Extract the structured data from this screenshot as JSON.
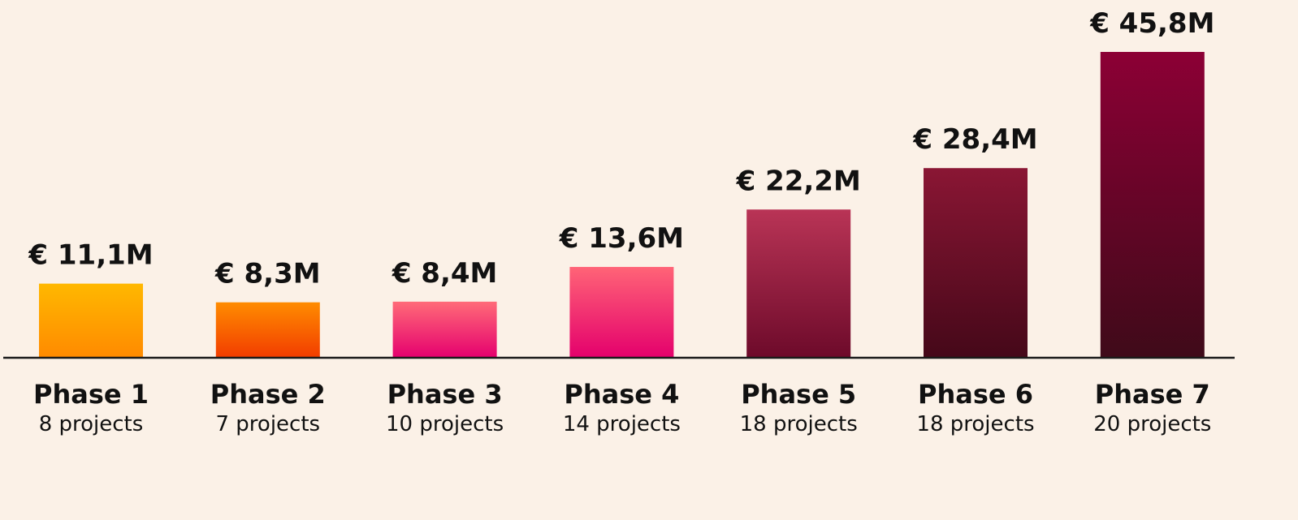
{
  "chart_data": {
    "type": "bar",
    "categories": [
      "Phase 1",
      "Phase 2",
      "Phase 3",
      "Phase 4",
      "Phase 5",
      "Phase 6",
      "Phase 7"
    ],
    "values": [
      11.1,
      8.3,
      8.4,
      13.6,
      22.2,
      28.4,
      45.8
    ],
    "value_labels": [
      "€ 11,1M",
      "€ 8,3M",
      "€ 8,4M",
      "€ 13,6M",
      "€ 22,2M",
      "€ 28,4M",
      "€ 45,8M"
    ],
    "sublabels": [
      "8 projects",
      "7 projects",
      "10 projects",
      "14 projects",
      "18 projects",
      "18  projects",
      "20 projects"
    ],
    "unit": "€ M",
    "title": "",
    "xlabel": "",
    "ylabel": "",
    "grid": false,
    "legend": "none",
    "bar_gradients": [
      [
        "#ffb800",
        "#ff8a00"
      ],
      [
        "#ff8c00",
        "#f23c00"
      ],
      [
        "#ff6b78",
        "#e5006e"
      ],
      [
        "#ff6477",
        "#e4006c"
      ],
      [
        "#b93456",
        "#6d0a2a"
      ],
      [
        "#8a1634",
        "#450819"
      ],
      [
        "#8c0035",
        "#3f0a19"
      ]
    ],
    "baseline_color": "#1a1a1a",
    "background": "#fbf1e7"
  }
}
